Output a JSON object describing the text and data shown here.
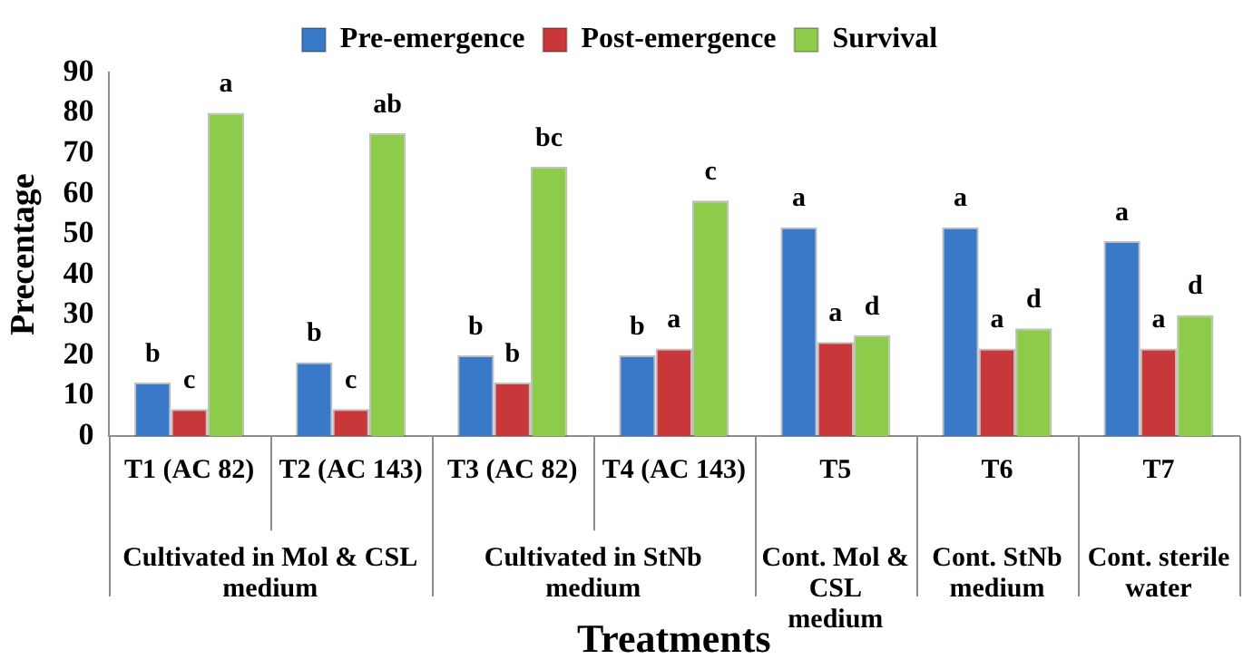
{
  "chart_data": {
    "type": "bar",
    "xlabel": "Treatments",
    "ylabel": "Precentage",
    "categories": [
      "T1 (AC 82)",
      "T2 (AC 143)",
      "T3 (AC 82)",
      "T4 (AC 143)",
      "T5",
      "T6",
      "T7"
    ],
    "annotations": [
      "Cultivated in Mol & CSL medium",
      "Cultivated in StNb medium",
      "Cont. Mol & CSL medium",
      "Cont. StNb medium",
      "Cont. sterile water"
    ],
    "series": [
      {
        "name": "Pre-emergence",
        "color": "#3a78c8",
        "values": [
          13.3,
          18.3,
          20,
          20,
          51.7,
          51.7,
          48.3
        ],
        "value_labels": [
          "b",
          "b",
          "b",
          "b",
          "a",
          "a",
          "a"
        ]
      },
      {
        "name": "Post-emergence",
        "color": "#c8383a",
        "values": [
          6.7,
          6.7,
          13.3,
          21.7,
          23.3,
          21.7,
          21.7
        ],
        "value_labels": [
          "c",
          "c",
          "b",
          "a",
          "a",
          "a",
          "a"
        ]
      },
      {
        "name": "Survival",
        "color": "#8dcc4a",
        "values": [
          80,
          75,
          66.7,
          58.3,
          25,
          26.7,
          30
        ],
        "value_labels": [
          "a",
          "ab",
          "bc",
          "c",
          "d",
          "d",
          "d"
        ]
      }
    ],
    "ylim": [
      0,
      90
    ],
    "yticks": [
      0,
      10,
      20,
      30,
      40,
      50,
      60,
      70,
      80,
      90
    ],
    "grid": false,
    "legend": "top"
  }
}
